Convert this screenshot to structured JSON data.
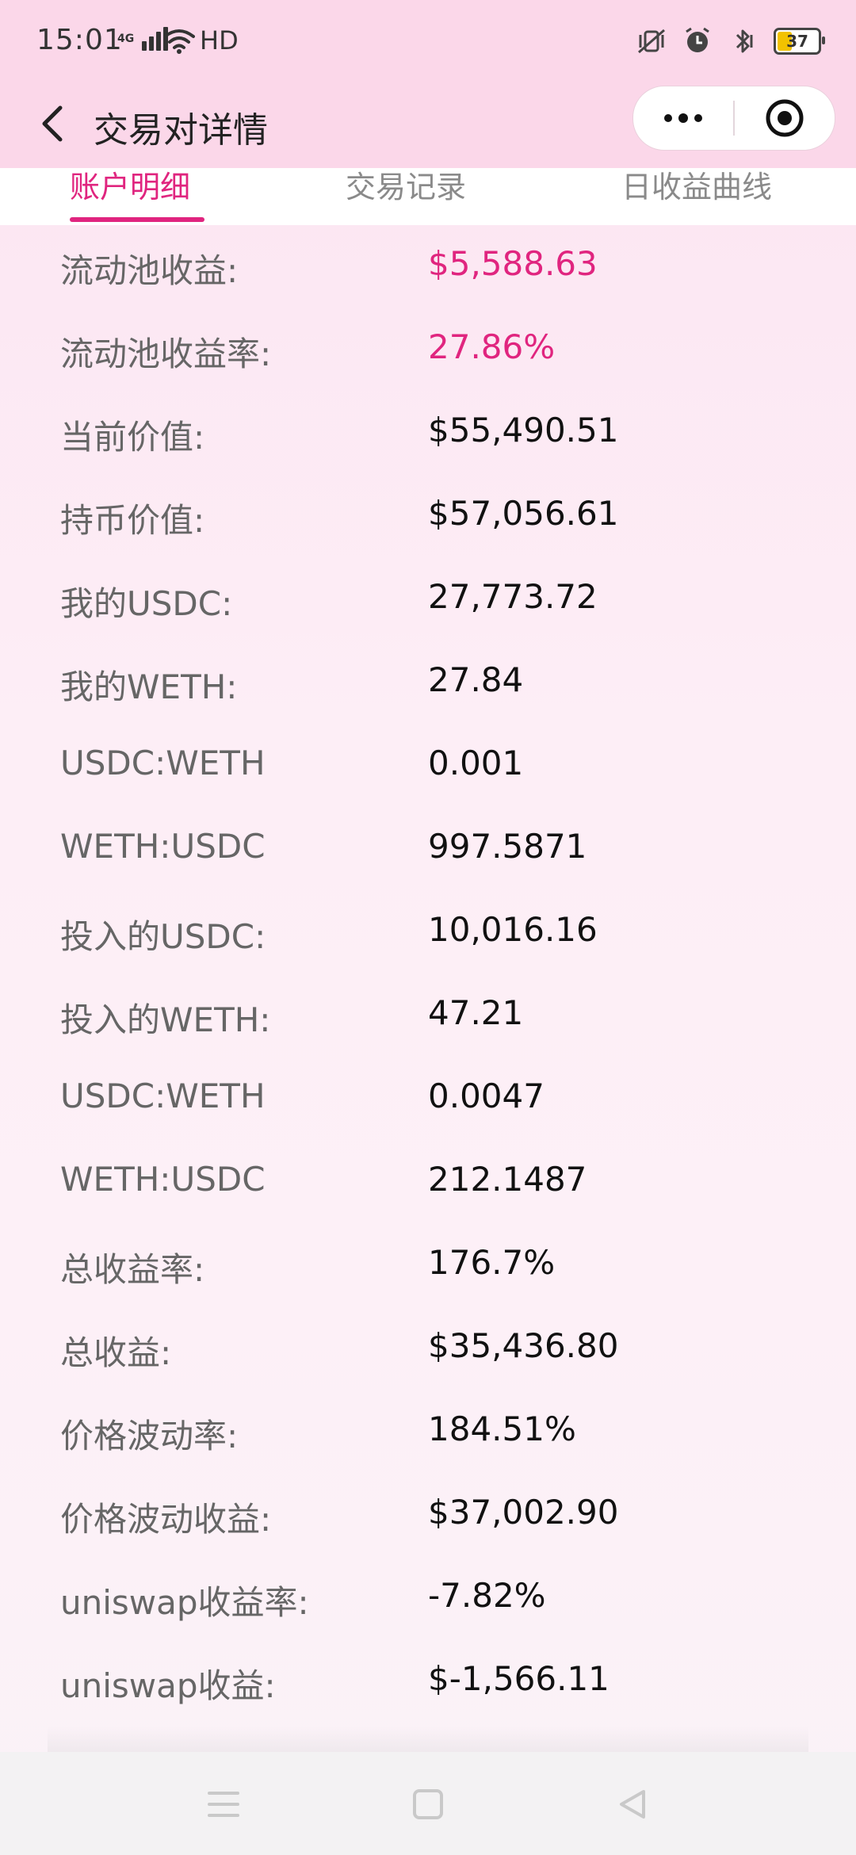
{
  "status_bar": {
    "time": "15:01",
    "network": "4G",
    "hd": "HD",
    "battery": "37"
  },
  "navbar": {
    "title": "交易对详情"
  },
  "tabs": [
    {
      "label": "账户明细",
      "active": true
    },
    {
      "label": "交易记录",
      "active": false
    },
    {
      "label": "日收益曲线",
      "active": false
    }
  ],
  "rows": [
    {
      "label": "流动池收益:",
      "value": "$5,588.63",
      "accent": true
    },
    {
      "label": "流动池收益率:",
      "value": "27.86%",
      "accent": true
    },
    {
      "label": "当前价值:",
      "value": "$55,490.51"
    },
    {
      "label": "持币价值:",
      "value": "$57,056.61"
    },
    {
      "label": "我的USDC:",
      "value": "27,773.72"
    },
    {
      "label": "我的WETH:",
      "value": "27.84"
    },
    {
      "label": "USDC:WETH",
      "value": "0.001"
    },
    {
      "label": "WETH:USDC",
      "value": "997.5871"
    },
    {
      "label": "投入的USDC:",
      "value": "10,016.16"
    },
    {
      "label": "投入的WETH:",
      "value": "47.21"
    },
    {
      "label": "USDC:WETH",
      "value": "0.0047"
    },
    {
      "label": "WETH:USDC",
      "value": "212.1487"
    },
    {
      "label": "总收益率:",
      "value": "176.7%"
    },
    {
      "label": "总收益:",
      "value": "$35,436.80"
    },
    {
      "label": "价格波动率:",
      "value": "184.51%"
    },
    {
      "label": "价格波动收益:",
      "value": "$37,002.90"
    },
    {
      "label": "uniswap收益率:",
      "value": "-7.82%"
    },
    {
      "label": "uniswap收益:",
      "value": "$-1,566.11"
    }
  ],
  "colors": {
    "accent": "#e0257f",
    "header_bg": "#fbd7e9"
  },
  "icons": {
    "back": "chevron-left-icon",
    "more": "more-dots-icon",
    "close": "target-circle-icon",
    "nav_menu": "menu-lines-icon",
    "nav_home": "square-icon",
    "nav_back": "triangle-back-icon"
  }
}
